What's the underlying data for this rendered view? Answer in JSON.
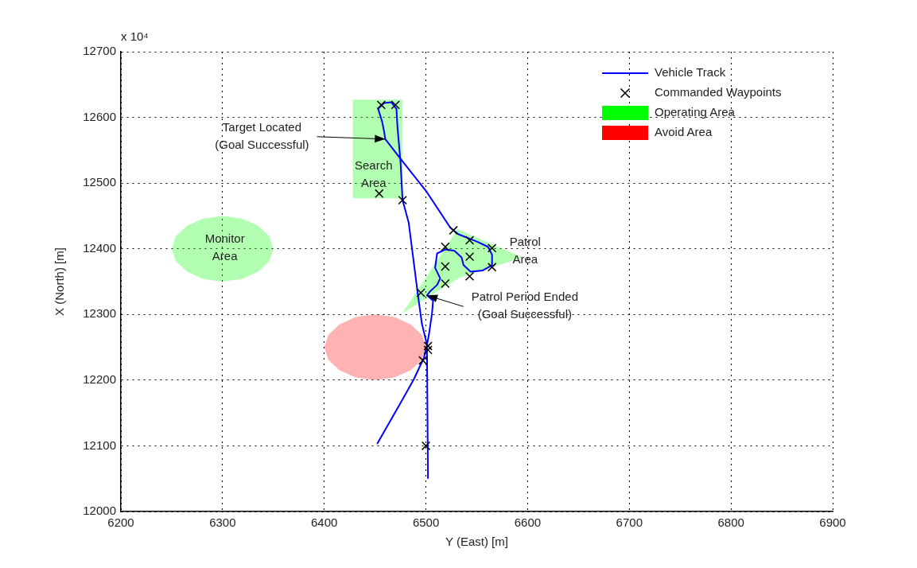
{
  "chart_data": {
    "type": "line",
    "xlabel": "Y (East) [m]",
    "ylabel": "X (North) [m]",
    "xlim": [
      6200,
      6900
    ],
    "xticks": [
      6200,
      6300,
      6400,
      6500,
      6600,
      6700,
      6800,
      6900
    ],
    "ylim": [
      12000,
      12700
    ],
    "yticks": [
      12000,
      12100,
      12200,
      12300,
      12400,
      12500,
      12600,
      12700
    ],
    "grid": true,
    "legend": "top right",
    "line_style": "solid",
    "series": [
      {
        "name": "Vehicle Track",
        "color": "#0000ff",
        "x": [
          6452,
          6472,
          6488,
          6498,
          6501,
          6496,
          6492,
          6483,
          6477,
          6475,
          6472,
          6471,
          6466,
          6459,
          6453,
          6457,
          6459,
          6460,
          6475,
          6501,
          6524,
          6532,
          6550,
          6561,
          6565,
          6565,
          6556,
          6544,
          6537,
          6535,
          6528,
          6519,
          6511,
          6509,
          6514,
          6511,
          6504,
          6501,
          6507,
          6506,
          6503,
          6501,
          6502
        ],
        "values": [
          12103,
          12157,
          12201,
          12234,
          12254,
          12286,
          12331,
          12440,
          12474,
          12532,
          12585,
          12613,
          12623,
          12622,
          12613,
          12593,
          12577,
          12567,
          12537,
          12486,
          12432,
          12422,
          12411,
          12403,
          12391,
          12375,
          12367,
          12365,
          12375,
          12387,
          12397,
          12399,
          12393,
          12371,
          12355,
          12345,
          12335,
          12329,
          12321,
          12302,
          12270,
          12254,
          12050
        ]
      },
      {
        "name": "Commanded Waypoints",
        "type": "scatter",
        "marker": "cross",
        "color": "#000000",
        "x": [
          6456,
          6470,
          6454,
          6477,
          6527,
          6543,
          6565,
          6519,
          6543,
          6519,
          6565,
          6543,
          6519,
          6495,
          6502,
          6502,
          6497,
          6500
        ],
        "values": [
          12619,
          12619,
          12484,
          12474,
          12428,
          12413,
          12401,
          12403,
          12388,
          12373,
          12372,
          12358,
          12347,
          12333,
          12252,
          12246,
          12230,
          12100
        ]
      },
      {
        "name": "Operating Area",
        "type": "area",
        "color": "#00ff00",
        "x": [
          6428,
          6477,
          6477,
          6428
        ],
        "values": [
          12477,
          12477,
          12627,
          12627
        ]
      },
      {
        "name": "Avoid Area",
        "type": "area",
        "color": "#ff0000",
        "x": [
          6500,
          6496,
          6485,
          6469,
          6450,
          6431,
          6415,
          6404,
          6400,
          6404,
          6415,
          6431,
          6450,
          6469,
          6485,
          6496
        ],
        "values": [
          12250,
          12269,
          12285,
          12296,
          12300,
          12296,
          12285,
          12269,
          12250,
          12231,
          12215,
          12204,
          12200,
          12204,
          12215,
          12231
        ]
      },
      {
        "type": "area",
        "color": "#00ff00",
        "x": [
          6350,
          6346,
          6335,
          6319,
          6300,
          6281,
          6265,
          6254,
          6250,
          6254,
          6265,
          6281,
          6300,
          6319,
          6335,
          6346
        ],
        "values": [
          12400,
          12419,
          12435,
          12446,
          12450,
          12446,
          12435,
          12419,
          12400,
          12381,
          12365,
          12354,
          12350,
          12354,
          12365,
          12381
        ]
      },
      {
        "type": "area",
        "color": "#00ff00",
        "x": [
          6477,
          6531,
          6595,
          6532
        ],
        "values": [
          12302,
          12430,
          12387,
          12355
        ]
      }
    ],
    "annotations": [
      "x 10⁴",
      {
        "text": "Target Located\n(Goal Successful)",
        "x": 6460,
        "y": 12567
      },
      {
        "text": "Patrol Period Ended\n(Goal Successful)",
        "x": 6501,
        "y": 12329
      },
      "Search\nArea",
      "Monitor\nArea",
      "Patrol\nArea"
    ]
  }
}
